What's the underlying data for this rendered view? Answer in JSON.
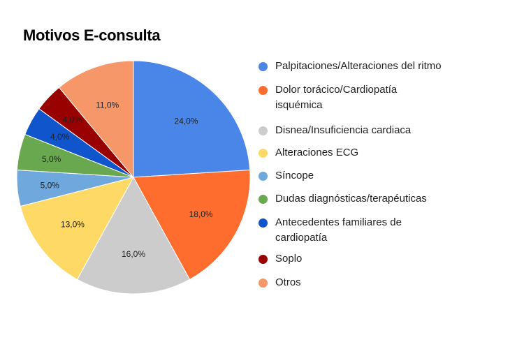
{
  "chart_data": {
    "type": "pie",
    "title": "Motivos E-consulta",
    "legend_position": "right",
    "slices": [
      {
        "label": "Palpitaciones/Alteraciones del ritmo",
        "value": 24.0,
        "display": "24,0%",
        "color": "#4a86e8"
      },
      {
        "label": "Dolor torácico/Cardiopatía isquémica",
        "value": 18.0,
        "display": "18,0%",
        "color": "#ff6d2e"
      },
      {
        "label": "Disnea/Insuficiencia cardiaca",
        "value": 16.0,
        "display": "16,0%",
        "color": "#cccccc"
      },
      {
        "label": "Alteraciones ECG",
        "value": 13.0,
        "display": "13,0%",
        "color": "#ffd966"
      },
      {
        "label": "Síncope",
        "value": 5.0,
        "display": "5,0%",
        "color": "#6fa8dc"
      },
      {
        "label": "Dudas diagnósticas/terapéuticas",
        "value": 5.0,
        "display": "5,0%",
        "color": "#6aa84f"
      },
      {
        "label": "Antecedentes familiares de cardiopatía",
        "value": 4.0,
        "display": "4,0%",
        "color": "#1155cc"
      },
      {
        "label": "Soplo",
        "value": 4.0,
        "display": "4,0%",
        "color": "#990000"
      },
      {
        "label": "Otros",
        "value": 11.0,
        "display": "11,0%",
        "color": "#f6976a"
      }
    ]
  }
}
